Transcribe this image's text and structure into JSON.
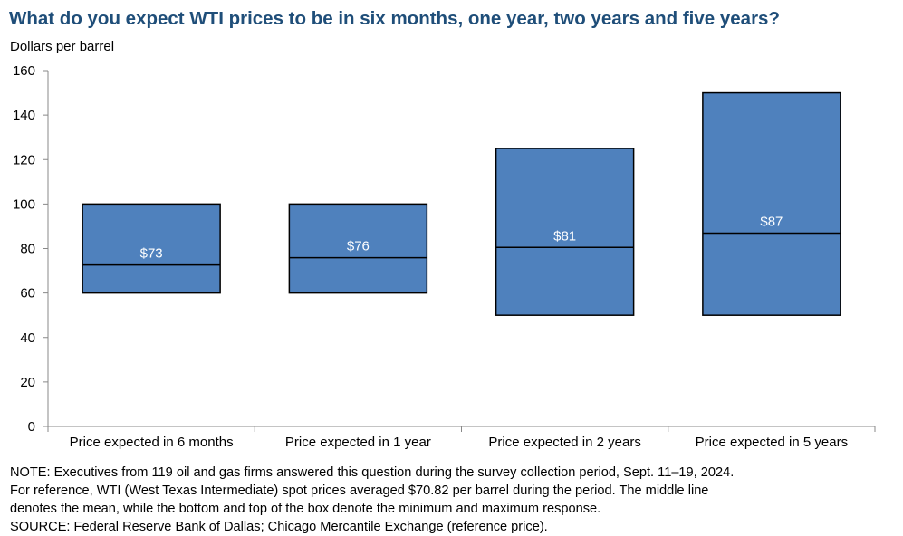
{
  "chart_data": {
    "type": "box",
    "title": "What do you expect WTI prices to be in six months, one year, two years and five years?",
    "ylabel": "Dollars  per barrel",
    "ylim": [
      0,
      160
    ],
    "yticks": [
      0,
      20,
      40,
      60,
      80,
      100,
      120,
      140,
      160
    ],
    "grid": false,
    "categories": [
      "Price expected in 6 months",
      "Price expected in 1 year",
      "Price expected in 2 years",
      "Price expected in 5 years"
    ],
    "min": [
      60,
      60,
      50,
      50
    ],
    "max": [
      100,
      100,
      125,
      150
    ],
    "mean": [
      72.6,
      75.9,
      80.5,
      86.9
    ],
    "mean_labels": [
      "$73",
      "$76",
      "$81",
      "$87"
    ],
    "colors": {
      "box_fill": "#4f81bd",
      "box_stroke": "#000000",
      "title": "#1f4e79"
    }
  },
  "notes": [
    "NOTE:  Executives  from  119  oil  and  gas  firms  answered  this  question  during  the  survey  collection  period,  Sept.  11–19,  2024.",
    "For  reference,  WTI  (West  Texas  Intermediate)  spot  prices  averaged  $70.82  per  barrel  during  the  period.  The  middle  line",
    "denotes  the  mean,  while  the  bottom  and  top  of  the  box  denote  the  minimum  and  maximum  response.",
    "SOURCE:  Federal  Reserve  Bank  of  Dallas;  Chicago  Mercantile  Exchange  (reference  price)."
  ]
}
